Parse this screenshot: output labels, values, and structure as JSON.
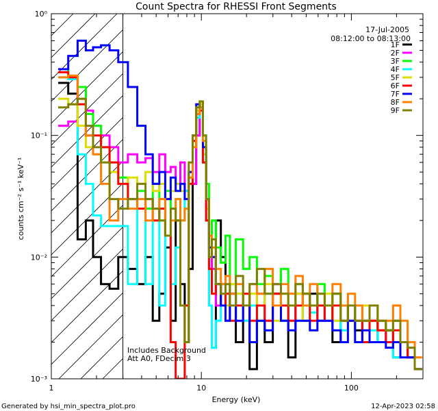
{
  "chart_data": {
    "type": "line",
    "title": "Count Spectra for RHESSI Front Segments",
    "xlabel": "Energy (keV)",
    "ylabel": "counts cm⁻² s⁻¹ keV⁻¹",
    "xscale": "log",
    "yscale": "log",
    "xlim": [
      1,
      300
    ],
    "ylim": [
      0.001,
      1
    ],
    "x_ticks": [
      {
        "value": 1,
        "label": "1"
      },
      {
        "value": 10,
        "label": "10"
      },
      {
        "value": 100,
        "label": "100"
      }
    ],
    "y_ticks": [
      {
        "value": 0.001,
        "label": "10⁻³"
      },
      {
        "value": 0.01,
        "label": "10⁻²"
      },
      {
        "value": 0.1,
        "label": "10⁻¹"
      },
      {
        "value": 1,
        "label": "10⁰"
      }
    ],
    "date": "17-Jul-2005",
    "time_range": "08:12:00 to 08:13:00",
    "hatched_region_max_energy": 3,
    "legend_position": "top-right",
    "annotations": [
      "Includes Background",
      "Att A0, FDecim 3"
    ],
    "x": [
      1.2,
      1.4,
      1.6,
      1.8,
      2.0,
      2.3,
      2.6,
      3.0,
      3.5,
      4.0,
      4.5,
      5.0,
      5.5,
      6.0,
      6.5,
      7.0,
      7.5,
      8.0,
      8.5,
      9.0,
      9.5,
      10.0,
      10.5,
      11.0,
      11.5,
      12.0,
      13.0,
      14.0,
      15.0,
      16.0,
      18.0,
      20.0,
      22.0,
      25.0,
      28.0,
      32.0,
      36.0,
      40.0,
      45.0,
      50.0,
      56.0,
      63.0,
      70.0,
      80.0,
      90.0,
      100.0,
      112.0,
      125.0,
      140.0,
      160.0,
      180.0,
      200.0,
      225.0,
      250.0,
      280.0
    ],
    "series": [
      {
        "name": "1F",
        "color": "#000000",
        "values": [
          0.27,
          0.22,
          0.014,
          0.02,
          0.01,
          0.006,
          0.0055,
          0.01,
          0.008,
          0.006,
          0.01,
          0.003,
          0.005,
          0.012,
          0.003,
          0.02,
          0.006,
          0.002,
          0.008,
          0.04,
          0.1,
          0.17,
          0.06,
          0.02,
          0.004,
          0.0018,
          0.02,
          0.01,
          0.004,
          0.005,
          0.002,
          0.004,
          0.0012,
          0.003,
          0.002,
          0.005,
          0.003,
          0.0015,
          0.004,
          0.003,
          0.005,
          0.003,
          0.004,
          0.002,
          0.003,
          0.004,
          0.0025,
          0.003,
          0.002,
          0.003,
          0.0025,
          0.0015,
          0.002,
          0.0015,
          0.0012
        ]
      },
      {
        "name": "2F",
        "color": "#ff00ff",
        "values": [
          0.12,
          0.13,
          0.25,
          0.16,
          0.12,
          0.1,
          0.08,
          0.06,
          0.07,
          0.06,
          0.065,
          0.05,
          0.07,
          0.05,
          0.055,
          0.04,
          0.06,
          0.035,
          0.045,
          0.04,
          0.1,
          0.16,
          0.08,
          0.03,
          0.012,
          0.008,
          0.004,
          0.006,
          0.003,
          0.005,
          0.004,
          0.003,
          0.004,
          0.005,
          0.003,
          0.006,
          0.004,
          0.003,
          0.005,
          0.004,
          0.004,
          0.003,
          0.004,
          0.005,
          0.003,
          0.003,
          0.004,
          0.002,
          0.003,
          0.0025,
          0.002,
          0.003,
          0.002,
          0.0015,
          0.0012
        ]
      },
      {
        "name": "3F",
        "color": "#00ff00",
        "values": [
          0.35,
          0.3,
          0.25,
          0.15,
          0.12,
          0.08,
          0.06,
          0.045,
          0.03,
          0.035,
          0.025,
          0.04,
          0.02,
          0.035,
          0.025,
          0.03,
          0.02,
          0.025,
          0.04,
          0.08,
          0.15,
          0.19,
          0.1,
          0.04,
          0.015,
          0.02,
          0.012,
          0.009,
          0.015,
          0.006,
          0.014,
          0.008,
          0.01,
          0.006,
          0.007,
          0.005,
          0.008,
          0.004,
          0.006,
          0.005,
          0.004,
          0.006,
          0.004,
          0.005,
          0.003,
          0.004,
          0.003,
          0.004,
          0.003,
          0.003,
          0.0025,
          0.003,
          0.002,
          0.002,
          0.0012
        ]
      },
      {
        "name": "4F",
        "color": "#00ffff",
        "values": [
          0.3,
          0.29,
          0.07,
          0.04,
          0.022,
          0.018,
          0.018,
          0.018,
          0.006,
          0.03,
          0.006,
          0.02,
          0.004,
          0.015,
          0.006,
          0.012,
          0.02,
          0.035,
          0.05,
          0.09,
          0.14,
          0.16,
          0.07,
          0.02,
          0.004,
          0.0018,
          0.003,
          0.004,
          0.006,
          0.003,
          0.005,
          0.003,
          0.004,
          0.003,
          0.005,
          0.004,
          0.003,
          0.004,
          0.003,
          0.004,
          0.0035,
          0.003,
          0.004,
          0.003,
          0.0025,
          0.003,
          0.003,
          0.002,
          0.0025,
          0.002,
          0.002,
          0.0015,
          0.002,
          0.0015,
          0.0012
        ]
      },
      {
        "name": "5F",
        "color": "#dddd00",
        "values": [
          0.2,
          0.18,
          0.12,
          0.08,
          0.07,
          0.06,
          0.05,
          0.04,
          0.045,
          0.04,
          0.05,
          0.035,
          0.04,
          0.03,
          0.035,
          0.04,
          0.035,
          0.03,
          0.05,
          0.09,
          0.16,
          0.18,
          0.07,
          0.025,
          0.012,
          0.01,
          0.006,
          0.005,
          0.004,
          0.006,
          0.005,
          0.004,
          0.005,
          0.004,
          0.006,
          0.003,
          0.005,
          0.004,
          0.005,
          0.003,
          0.004,
          0.004,
          0.005,
          0.003,
          0.004,
          0.003,
          0.003,
          0.004,
          0.003,
          0.0025,
          0.003,
          0.002,
          0.002,
          0.0015,
          0.0012
        ]
      },
      {
        "name": "6F",
        "color": "#ff0000",
        "values": [
          0.33,
          0.3,
          0.18,
          0.1,
          0.1,
          0.08,
          0.06,
          0.04,
          0.03,
          0.025,
          0.03,
          0.02,
          0.025,
          0.015,
          0.002,
          0.001,
          0.001,
          0.004,
          0.04,
          0.09,
          0.15,
          0.16,
          0.06,
          0.02,
          0.008,
          0.005,
          0.006,
          0.004,
          0.005,
          0.003,
          0.004,
          0.005,
          0.003,
          0.004,
          0.003,
          0.005,
          0.004,
          0.003,
          0.004,
          0.005,
          0.003,
          0.004,
          0.003,
          0.004,
          0.004,
          0.003,
          0.003,
          0.002,
          0.003,
          0.0025,
          0.002,
          0.0025,
          0.002,
          0.0015,
          0.0012
        ]
      },
      {
        "name": "7F",
        "color": "#0000ff",
        "values": [
          0.35,
          0.45,
          0.6,
          0.5,
          0.53,
          0.55,
          0.5,
          0.4,
          0.25,
          0.12,
          0.07,
          0.04,
          0.05,
          0.03,
          0.045,
          0.035,
          0.04,
          0.03,
          0.05,
          0.1,
          0.18,
          0.17,
          0.08,
          0.03,
          0.012,
          0.01,
          0.006,
          0.004,
          0.003,
          0.004,
          0.003,
          0.004,
          0.002,
          0.003,
          0.0025,
          0.004,
          0.003,
          0.0025,
          0.003,
          0.003,
          0.0025,
          0.003,
          0.003,
          0.0025,
          0.002,
          0.003,
          0.002,
          0.0025,
          0.002,
          0.002,
          0.0018,
          0.002,
          0.0015,
          0.0015,
          0.0012
        ]
      },
      {
        "name": "8F",
        "color": "#ff8000",
        "values": [
          0.3,
          0.31,
          0.2,
          0.1,
          0.07,
          0.04,
          0.02,
          0.03,
          0.025,
          0.03,
          0.02,
          0.025,
          0.03,
          0.015,
          0.02,
          0.03,
          0.02,
          0.025,
          0.045,
          0.08,
          0.15,
          0.17,
          0.09,
          0.03,
          0.015,
          0.012,
          0.008,
          0.006,
          0.007,
          0.005,
          0.006,
          0.004,
          0.006,
          0.005,
          0.008,
          0.004,
          0.006,
          0.005,
          0.007,
          0.004,
          0.006,
          0.005,
          0.004,
          0.006,
          0.004,
          0.005,
          0.004,
          0.003,
          0.004,
          0.003,
          0.003,
          0.004,
          0.003,
          0.002,
          0.0015
        ]
      },
      {
        "name": "9F",
        "color": "#808000",
        "values": [
          0.17,
          0.18,
          0.2,
          0.12,
          0.08,
          0.06,
          0.03,
          0.025,
          0.03,
          0.04,
          0.03,
          0.025,
          0.02,
          0.015,
          0.025,
          0.02,
          0.004,
          0.002,
          0.06,
          0.1,
          0.17,
          0.19,
          0.1,
          0.03,
          0.01,
          0.014,
          0.006,
          0.005,
          0.006,
          0.004,
          0.007,
          0.004,
          0.006,
          0.008,
          0.005,
          0.006,
          0.005,
          0.004,
          0.006,
          0.005,
          0.004,
          0.005,
          0.004,
          0.005,
          0.003,
          0.004,
          0.003,
          0.003,
          0.004,
          0.003,
          0.0025,
          0.003,
          0.002,
          0.0018,
          0.0012
        ]
      }
    ]
  },
  "footer": {
    "generated_by": "Generated by hsi_min_spectra_plot.pro",
    "timestamp": "12-Apr-2023 02:58"
  }
}
